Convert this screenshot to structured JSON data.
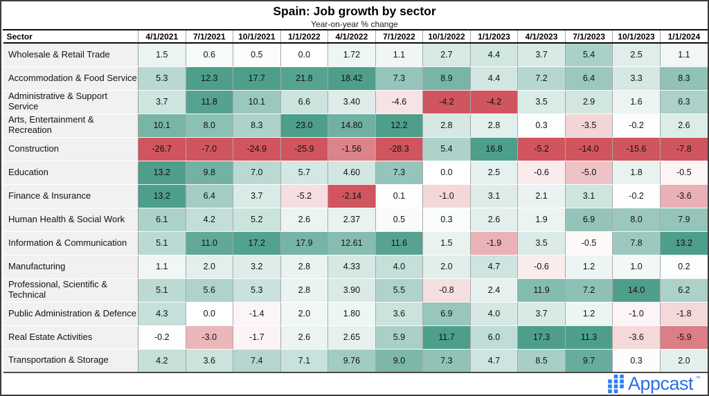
{
  "chart_data": {
    "type": "heatmap",
    "title": "Spain: Job growth by sector",
    "subtitle": "Year-on-year % change",
    "row_label_header": "Sector",
    "x_labels": [
      "4/1/2021",
      "7/1/2021",
      "10/1/2021",
      "1/1/2022",
      "4/1/2022",
      "7/1/2022",
      "10/1/2022",
      "1/1/2023",
      "4/1/2023",
      "7/1/2023",
      "10/1/2023",
      "1/1/2024"
    ],
    "rows": [
      {
        "name": "Wholesale & Retail Trade",
        "values": [
          "1.5",
          "0.6",
          "0.5",
          "0.0",
          "1.72",
          "1.1",
          "2.7",
          "4.4",
          "3.7",
          "5.4",
          "2.5",
          "1.1"
        ]
      },
      {
        "name": "Accommodation & Food Service",
        "values": [
          "5.3",
          "12.3",
          "17.7",
          "21.8",
          "18.42",
          "7.3",
          "8.9",
          "4.4",
          "7.2",
          "6.4",
          "3.3",
          "8.3"
        ]
      },
      {
        "name": "Administrative & Support Service",
        "values": [
          "3.7",
          "11.8",
          "10.1",
          "6.6",
          "3.40",
          "-4.6",
          "-4.2",
          "-4.2",
          "3.5",
          "2.9",
          "1.6",
          "6.3"
        ]
      },
      {
        "name": "Arts, Entertainment & Recreation",
        "values": [
          "10.1",
          "8.0",
          "8.3",
          "23.0",
          "14.80",
          "12.2",
          "2.8",
          "2.8",
          "0.3",
          "-3.5",
          "-0.2",
          "2.6"
        ]
      },
      {
        "name": "Construction",
        "values": [
          "-26.7",
          "-7.0",
          "-24.9",
          "-25.9",
          "-1.56",
          "-28.3",
          "5.4",
          "16.8",
          "-5.2",
          "-14.0",
          "-15.6",
          "-7.8"
        ]
      },
      {
        "name": "Education",
        "values": [
          "13.2",
          "9.8",
          "7.0",
          "5.7",
          "4.60",
          "7.3",
          "0.0",
          "2.5",
          "-0.6",
          "-5.0",
          "1.8",
          "-0.5"
        ]
      },
      {
        "name": "Finance & Insurance",
        "values": [
          "13.2",
          "6.4",
          "3.7",
          "-5.2",
          "-2.14",
          "0.1",
          "-1.0",
          "3.1",
          "2.1",
          "3.1",
          "-0.2",
          "-3.6"
        ]
      },
      {
        "name": "Human Health & Social Work",
        "values": [
          "6.1",
          "4.2",
          "5.2",
          "2.6",
          "2.37",
          "0.5",
          "0.3",
          "2.6",
          "1.9",
          "6.9",
          "8.0",
          "7.9"
        ]
      },
      {
        "name": "Information & Communication",
        "values": [
          "5.1",
          "11.0",
          "17.2",
          "17.9",
          "12.61",
          "11.6",
          "1.5",
          "-1.9",
          "3.5",
          "-0.5",
          "7.8",
          "13.2"
        ]
      },
      {
        "name": "Manufacturing",
        "values": [
          "1.1",
          "2.0",
          "3.2",
          "2.8",
          "4.33",
          "4.0",
          "2.0",
          "4.7",
          "-0.6",
          "1.2",
          "1.0",
          "0.2"
        ]
      },
      {
        "name": "Professional, Scientific & Technical",
        "values": [
          "5.1",
          "5.6",
          "5.3",
          "2.8",
          "3.90",
          "5.5",
          "-0.8",
          "2.4",
          "11.9",
          "7.2",
          "14.0",
          "6.2"
        ]
      },
      {
        "name": "Public Administration & Defence",
        "values": [
          "4.3",
          "0.0",
          "-1.4",
          "2.0",
          "1.80",
          "3.6",
          "6.9",
          "4.0",
          "3.7",
          "1.2",
          "-1.0",
          "-1.8"
        ]
      },
      {
        "name": "Real Estate Activities",
        "values": [
          "-0.2",
          "-3.0",
          "-1.7",
          "2.6",
          "2.65",
          "5.9",
          "11.7",
          "6.0",
          "17.3",
          "11.3",
          "-3.6",
          "-5.9"
        ]
      },
      {
        "name": "Transportation & Storage",
        "values": [
          "4.2",
          "3.6",
          "7.4",
          "7.1",
          "9.76",
          "9.0",
          "7.3",
          "4.7",
          "8.5",
          "9.7",
          "0.3",
          "2.0"
        ]
      }
    ],
    "color_scale": {
      "positive_max": "#4e9e8c",
      "negative_max": "#d0555e",
      "zero": "#ffffff",
      "normalization": "per-column"
    }
  },
  "footer": {
    "brand": "Appcast",
    "trademark": "™",
    "brand_text_color": "#2c6fe4",
    "logo_square_color": "#2f80f0"
  }
}
